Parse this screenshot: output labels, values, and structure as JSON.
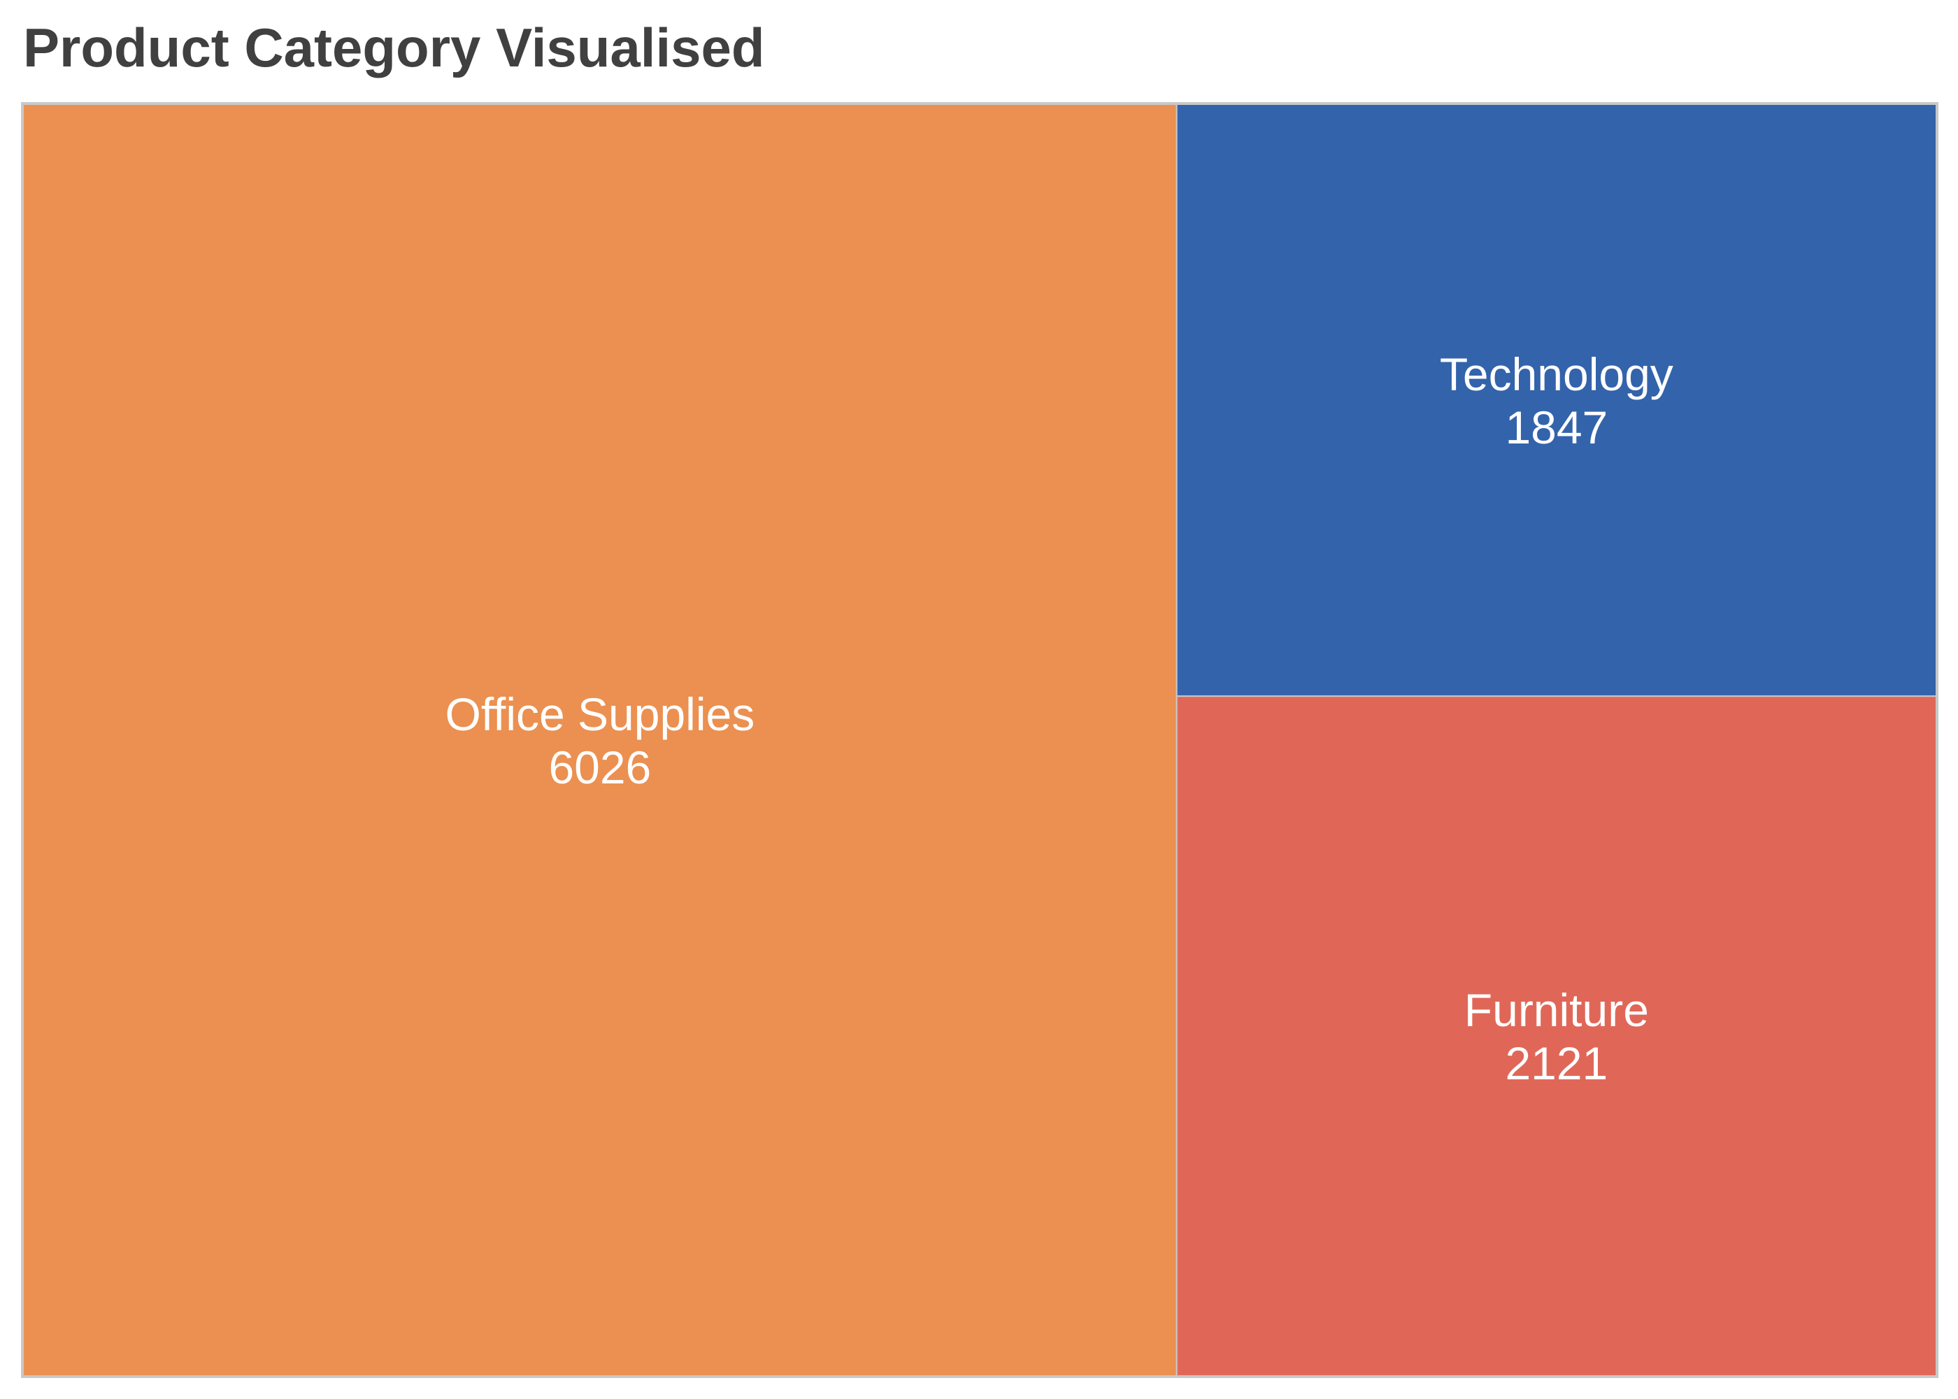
{
  "page": {
    "title": "Product Category Visualised"
  },
  "chart_data": {
    "type": "treemap",
    "title": "Product Category Visualised",
    "items": [
      {
        "label": "Office Supplies",
        "value": 6026,
        "color": "#EB9050"
      },
      {
        "label": "Technology",
        "value": 1847,
        "color": "#3363AB"
      },
      {
        "label": "Furniture",
        "value": 2121,
        "color": "#E06758"
      }
    ],
    "tile_border_color": "#c8c8c8",
    "label_color": "#ffffff"
  }
}
